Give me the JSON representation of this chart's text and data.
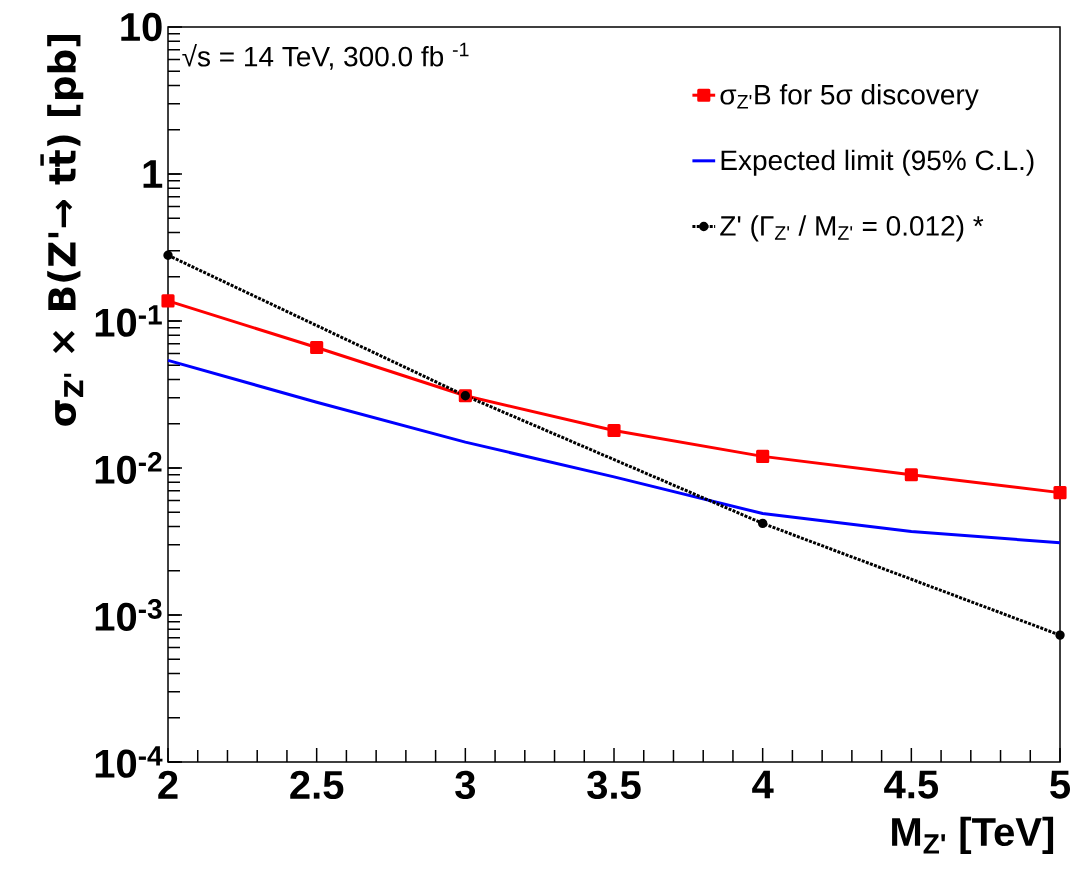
{
  "chart_data": {
    "type": "line",
    "xlabel": "M$_{Z'}$ [TeV]",
    "ylabel": "σ$_{Z'}$ × B(Z'→ tt̄) [pb]",
    "annotations": [
      "√s = 14 TeV, 300.0 fb $^{-1}$"
    ],
    "log": "y",
    "xlim": [
      2,
      5
    ],
    "ylim": [
      0.0001,
      10
    ],
    "xticks": [
      2,
      2.5,
      3,
      3.5,
      4,
      4.5,
      5
    ],
    "yticks": [
      {
        "value": 0.0001,
        "label": "10$^{-4}$"
      },
      {
        "value": 0.001,
        "label": "10$^{-3}$"
      },
      {
        "value": 0.01,
        "label": "10$^{-2}$"
      },
      {
        "value": 0.1,
        "label": "10$^{-1}$"
      },
      1,
      10
    ],
    "legend": "top right",
    "grid": false,
    "series": [
      {
        "name": "σ$_{Z'}$B for 5σ discovery",
        "color": "#ff0000",
        "marker": "square",
        "line_style": "solid",
        "x": [
          2,
          2.5,
          3,
          3.5,
          4,
          4.5,
          5
        ],
        "values": [
          0.137,
          0.066,
          0.031,
          0.018,
          0.012,
          0.009,
          0.0068
        ]
      },
      {
        "name": "Expected limit (95% C.L.)",
        "color": "#0000ff",
        "marker": "none",
        "line_style": "solid",
        "x": [
          2,
          2.5,
          3,
          3.5,
          4,
          4.5,
          5
        ],
        "values": [
          0.054,
          0.028,
          0.015,
          0.0087,
          0.0049,
          0.0037,
          0.0031
        ]
      },
      {
        "name": "Z' (Γ$_{Z'}$ / M$_{Z'}$ = 0.012) *",
        "color": "#000000",
        "marker": "circle",
        "line_style": "dotted",
        "x": [
          2,
          3,
          4,
          5
        ],
        "values": [
          0.28,
          0.031,
          0.0042,
          0.00073
        ]
      }
    ]
  }
}
